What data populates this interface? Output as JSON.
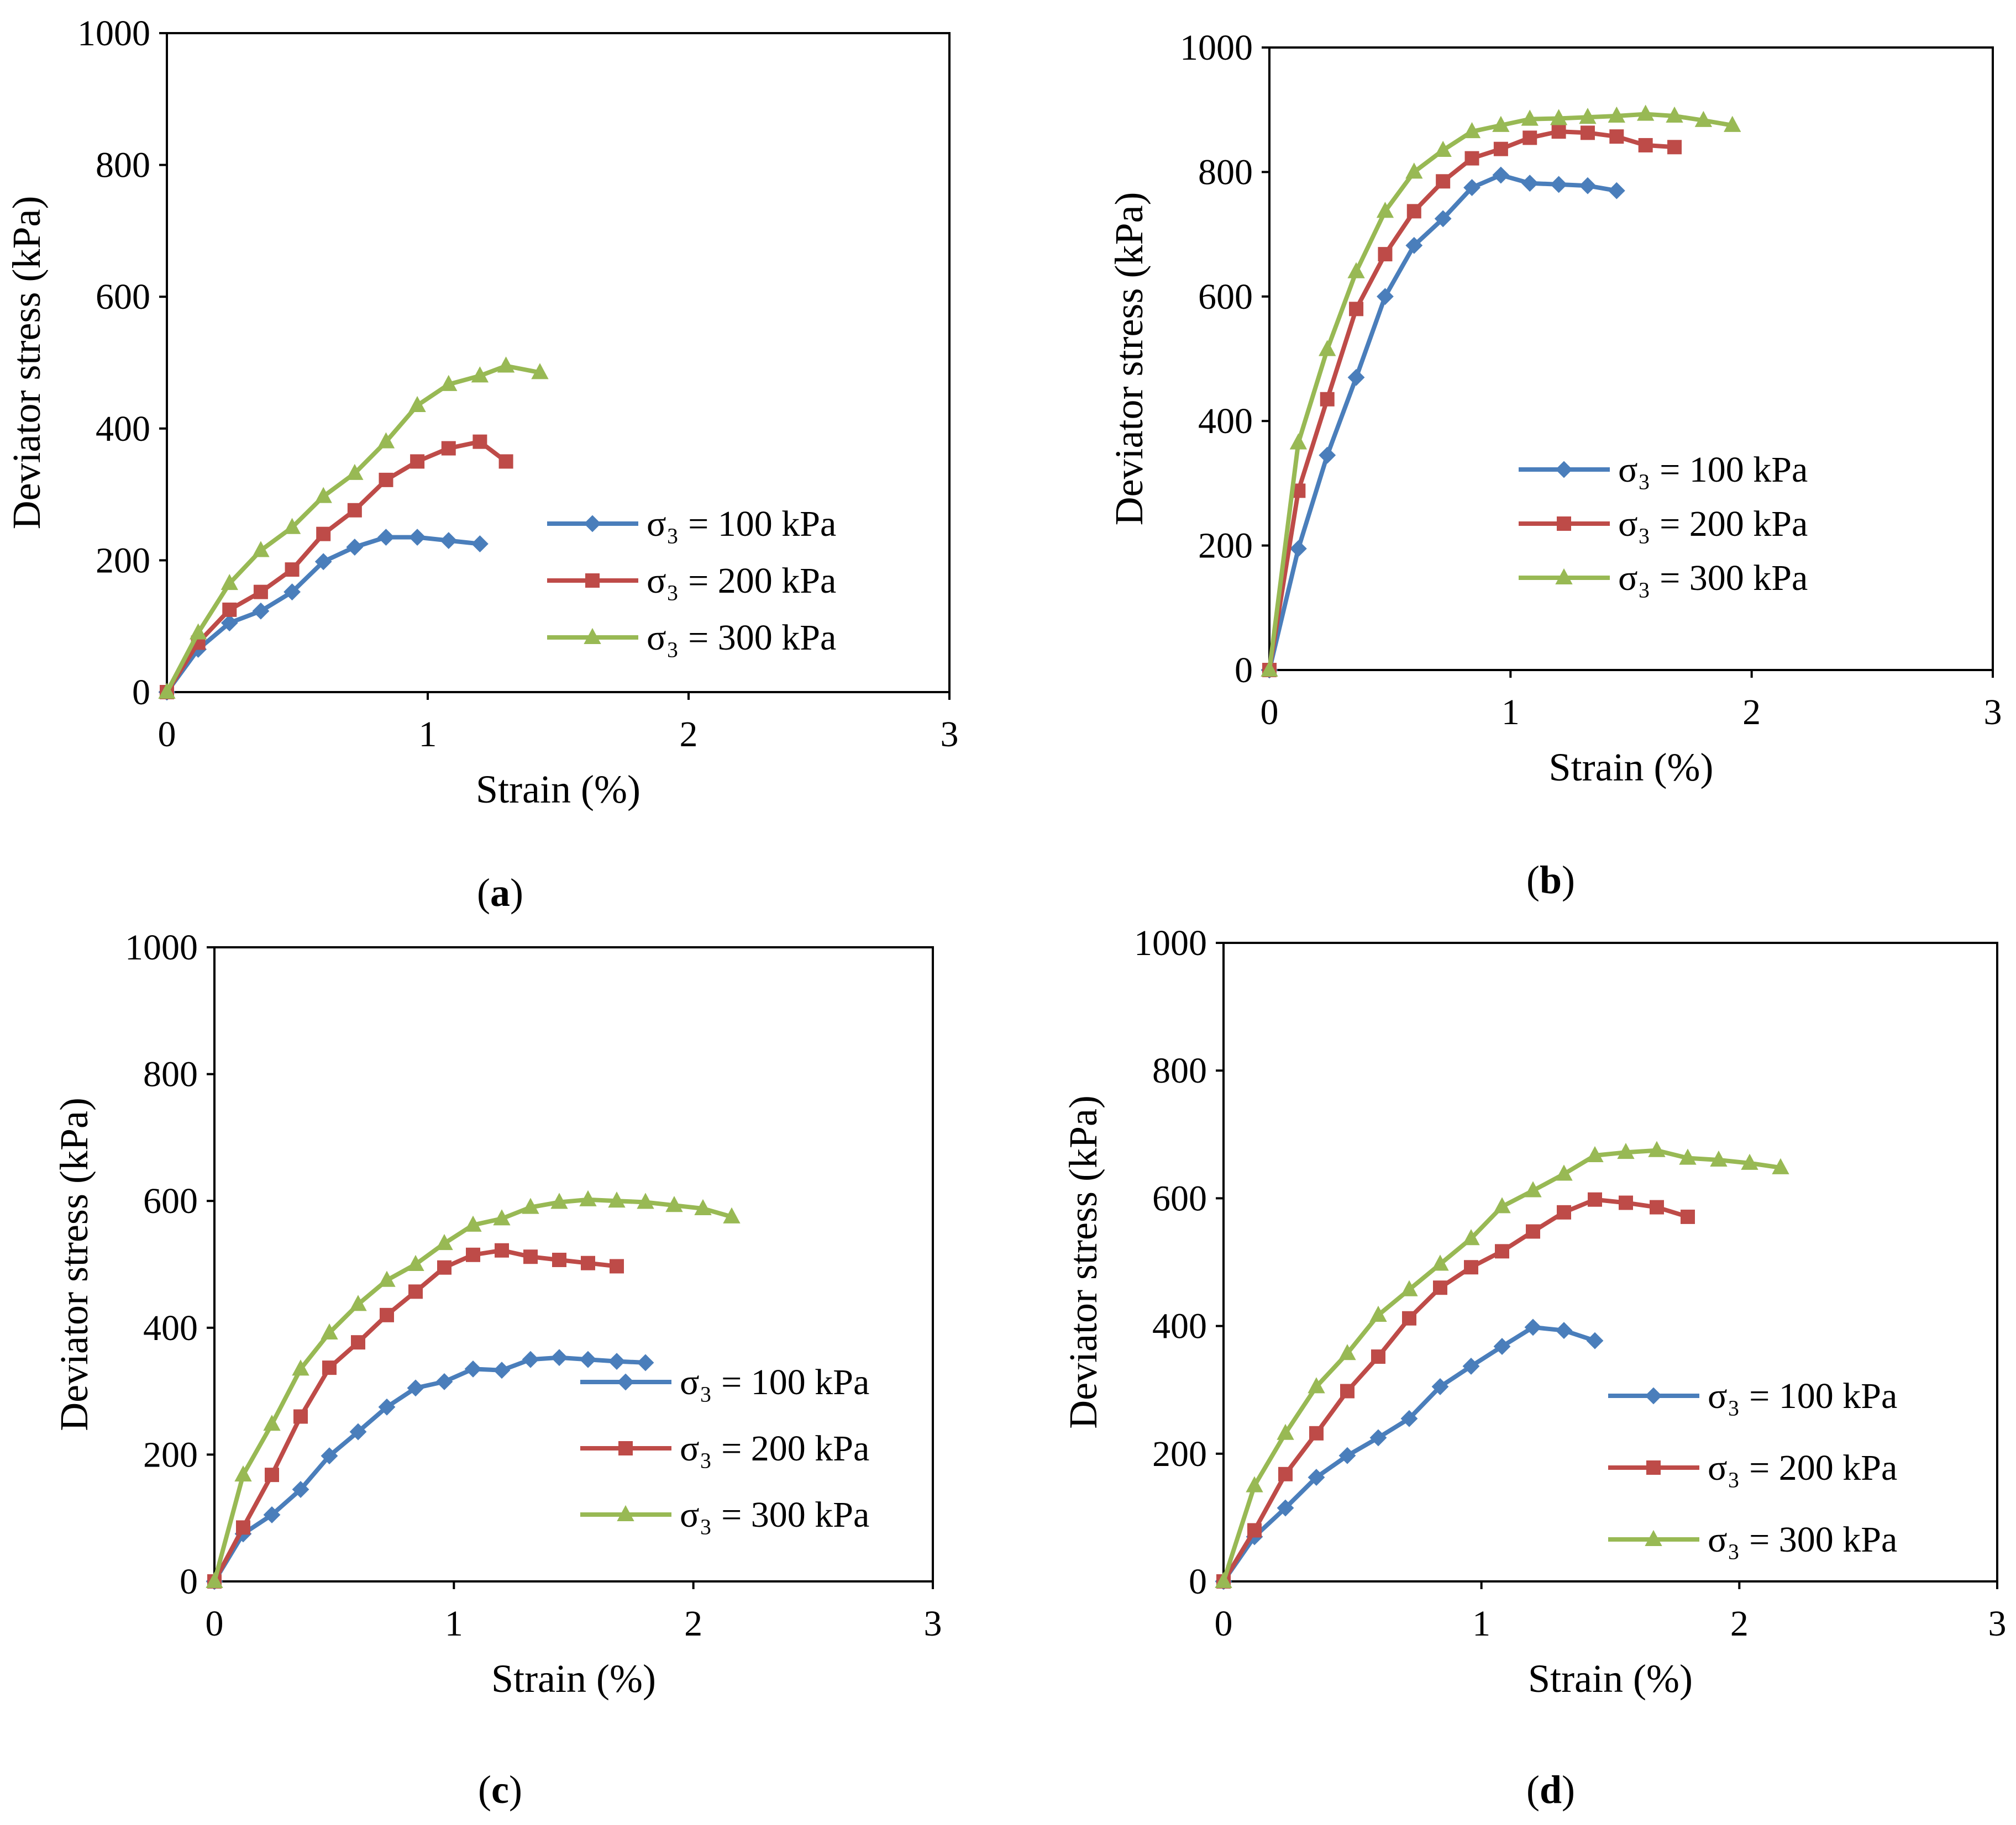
{
  "chart_data": [
    {
      "type": "line",
      "panel_label": "a",
      "xlabel": "Strain (%)",
      "ylabel": "Deviator stress (kPa)",
      "xlim": [
        0,
        3
      ],
      "ylim": [
        0,
        1000
      ],
      "xticks": [
        "0",
        "1",
        "2",
        "3"
      ],
      "yticks": [
        "0",
        "200",
        "400",
        "600",
        "800",
        "1000"
      ],
      "legend_position": "right",
      "series": [
        {
          "name": "σ₃  = 100 kPa",
          "color": "#4A7EBB",
          "marker": "diamond",
          "x": [
            0,
            0.12,
            0.24,
            0.36,
            0.48,
            0.6,
            0.72,
            0.84,
            0.96,
            1.08,
            1.2
          ],
          "y": [
            0,
            65,
            105,
            123,
            152,
            198,
            220,
            235,
            235,
            230,
            225
          ]
        },
        {
          "name": "σ₃  = 200 kPa",
          "color": "#BE4B48",
          "marker": "square",
          "x": [
            0,
            0.12,
            0.24,
            0.36,
            0.48,
            0.6,
            0.72,
            0.84,
            0.96,
            1.08,
            1.2,
            1.3
          ],
          "y": [
            0,
            75,
            125,
            152,
            186,
            240,
            276,
            322,
            350,
            370,
            380,
            350
          ]
        },
        {
          "name": "σ₃  = 300 kPa",
          "color": "#98B954",
          "marker": "triangle",
          "x": [
            0,
            0.12,
            0.24,
            0.36,
            0.48,
            0.6,
            0.72,
            0.84,
            0.96,
            1.08,
            1.2,
            1.3,
            1.43
          ],
          "y": [
            0,
            90,
            165,
            215,
            250,
            297,
            332,
            380,
            435,
            467,
            480,
            495,
            485
          ]
        }
      ]
    },
    {
      "type": "line",
      "panel_label": "b",
      "xlabel": "Strain (%)",
      "ylabel": "Deviator stress (kPa)",
      "xlim": [
        0,
        3
      ],
      "ylim": [
        0,
        1000
      ],
      "xticks": [
        "0",
        "1",
        "2",
        "3"
      ],
      "yticks": [
        "0",
        "200",
        "400",
        "600",
        "800",
        "1000"
      ],
      "legend_position": "right",
      "series": [
        {
          "name": "σ₃  = 100 kPa",
          "color": "#4A7EBB",
          "marker": "diamond",
          "x": [
            0,
            0.12,
            0.24,
            0.36,
            0.48,
            0.6,
            0.72,
            0.84,
            0.96,
            1.08,
            1.2,
            1.32,
            1.44
          ],
          "y": [
            0,
            195,
            345,
            470,
            600,
            682,
            725,
            775,
            795,
            782,
            780,
            778,
            770
          ]
        },
        {
          "name": "σ₃  = 200 kPa",
          "color": "#BE4B48",
          "marker": "square",
          "x": [
            0,
            0.12,
            0.24,
            0.36,
            0.48,
            0.6,
            0.72,
            0.84,
            0.96,
            1.08,
            1.2,
            1.32,
            1.44,
            1.56,
            1.68
          ],
          "y": [
            0,
            288,
            435,
            580,
            668,
            737,
            785,
            822,
            837,
            855,
            865,
            863,
            857,
            843,
            840
          ]
        },
        {
          "name": "σ₃  = 300 kPa",
          "color": "#98B954",
          "marker": "triangle",
          "x": [
            0,
            0.12,
            0.24,
            0.36,
            0.48,
            0.6,
            0.72,
            0.84,
            0.96,
            1.08,
            1.2,
            1.32,
            1.44,
            1.56,
            1.68,
            1.8,
            1.92
          ],
          "y": [
            0,
            365,
            515,
            640,
            737,
            800,
            835,
            865,
            875,
            885,
            886,
            888,
            890,
            893,
            890,
            883,
            875
          ]
        }
      ]
    },
    {
      "type": "line",
      "panel_label": "c",
      "xlabel": "Strain (%)",
      "ylabel": "Deviator stress (kPa)",
      "xlim": [
        0,
        3
      ],
      "ylim": [
        0,
        1000
      ],
      "xticks": [
        "0",
        "1",
        "2",
        "3"
      ],
      "yticks": [
        "0",
        "200",
        "400",
        "600",
        "800",
        "1000"
      ],
      "legend_position": "right",
      "series": [
        {
          "name": "σ₃  = 100 kPa",
          "color": "#4A7EBB",
          "marker": "diamond",
          "x": [
            0,
            0.12,
            0.24,
            0.36,
            0.48,
            0.6,
            0.72,
            0.84,
            0.96,
            1.08,
            1.2,
            1.32,
            1.44,
            1.56,
            1.68,
            1.8
          ],
          "y": [
            0,
            75,
            105,
            145,
            198,
            236,
            275,
            305,
            315,
            335,
            333,
            350,
            353,
            350,
            347,
            345
          ]
        },
        {
          "name": "σ₃  = 200 kPa",
          "color": "#BE4B48",
          "marker": "square",
          "x": [
            0,
            0.12,
            0.24,
            0.36,
            0.48,
            0.6,
            0.72,
            0.84,
            0.96,
            1.08,
            1.2,
            1.32,
            1.44,
            1.56,
            1.68
          ],
          "y": [
            0,
            85,
            168,
            260,
            337,
            377,
            420,
            457,
            495,
            515,
            522,
            512,
            507,
            502,
            497
          ]
        },
        {
          "name": "σ₃  = 300 kPa",
          "color": "#98B954",
          "marker": "triangle",
          "x": [
            0,
            0.12,
            0.24,
            0.36,
            0.48,
            0.6,
            0.72,
            0.84,
            0.96,
            1.08,
            1.2,
            1.32,
            1.44,
            1.56,
            1.68,
            1.8,
            1.92,
            2.04,
            2.16
          ],
          "y": [
            0,
            168,
            248,
            335,
            392,
            437,
            475,
            500,
            533,
            562,
            572,
            590,
            598,
            602,
            600,
            598,
            593,
            588,
            575
          ]
        }
      ]
    },
    {
      "type": "line",
      "panel_label": "d",
      "xlabel": "Strain (%)",
      "ylabel": "Deviator stress  (kPa)",
      "xlim": [
        0,
        3
      ],
      "ylim": [
        0,
        1000
      ],
      "xticks": [
        "0",
        "1",
        "2",
        "3"
      ],
      "yticks": [
        "0",
        "200",
        "400",
        "600",
        "800",
        "1000"
      ],
      "legend_position": "right",
      "series": [
        {
          "name": "σ₃  = 100 kPa",
          "color": "#4A7EBB",
          "marker": "diamond",
          "x": [
            0,
            0.12,
            0.24,
            0.36,
            0.48,
            0.6,
            0.72,
            0.84,
            0.96,
            1.08,
            1.2,
            1.32,
            1.44
          ],
          "y": [
            0,
            70,
            115,
            163,
            197,
            225,
            255,
            305,
            337,
            368,
            398,
            393,
            377
          ]
        },
        {
          "name": "σ₃  = 200 kPa",
          "color": "#BE4B48",
          "marker": "square",
          "x": [
            0,
            0.12,
            0.24,
            0.36,
            0.48,
            0.6,
            0.72,
            0.84,
            0.96,
            1.08,
            1.2,
            1.32,
            1.44,
            1.56,
            1.68,
            1.8
          ],
          "y": [
            0,
            80,
            168,
            232,
            298,
            352,
            412,
            460,
            492,
            517,
            548,
            578,
            598,
            593,
            586,
            571
          ]
        },
        {
          "name": "σ₃  = 300 kPa",
          "color": "#98B954",
          "marker": "triangle",
          "x": [
            0,
            0.12,
            0.24,
            0.36,
            0.48,
            0.6,
            0.72,
            0.84,
            0.96,
            1.08,
            1.2,
            1.32,
            1.44,
            1.56,
            1.68,
            1.8,
            1.92,
            2.04,
            2.16
          ],
          "y": [
            0,
            150,
            232,
            305,
            357,
            417,
            457,
            497,
            537,
            587,
            612,
            638,
            667,
            672,
            675,
            663,
            660,
            655,
            648
          ]
        }
      ]
    }
  ]
}
